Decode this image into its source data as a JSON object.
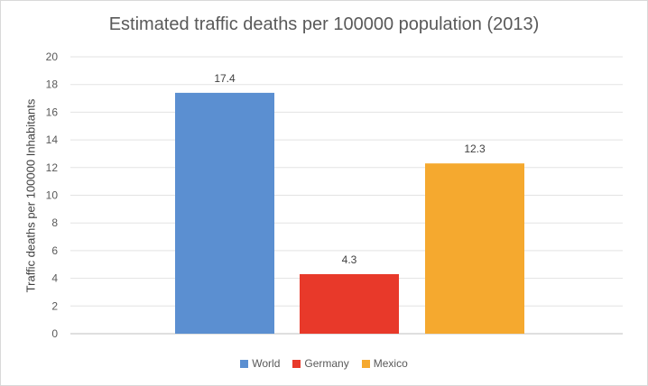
{
  "chart_data": {
    "type": "bar",
    "title": "Estimated traffic deaths per 100000 population (2013)",
    "ylabel": "Traffic deaths per 100000 Inhabitants",
    "xlabel": "",
    "ylim": [
      0,
      20
    ],
    "yticks": [
      0,
      2,
      4,
      6,
      8,
      10,
      12,
      14,
      16,
      18,
      20
    ],
    "grid": true,
    "legend_position": "bottom",
    "series": [
      {
        "name": "World",
        "values": [
          17.4
        ],
        "label": "17.4",
        "color": "#5b8fd1"
      },
      {
        "name": "Germany",
        "values": [
          4.3
        ],
        "label": "4.3",
        "color": "#e8392a"
      },
      {
        "name": "Mexico",
        "values": [
          12.3
        ],
        "label": "12.3",
        "color": "#f5a92f"
      }
    ]
  }
}
